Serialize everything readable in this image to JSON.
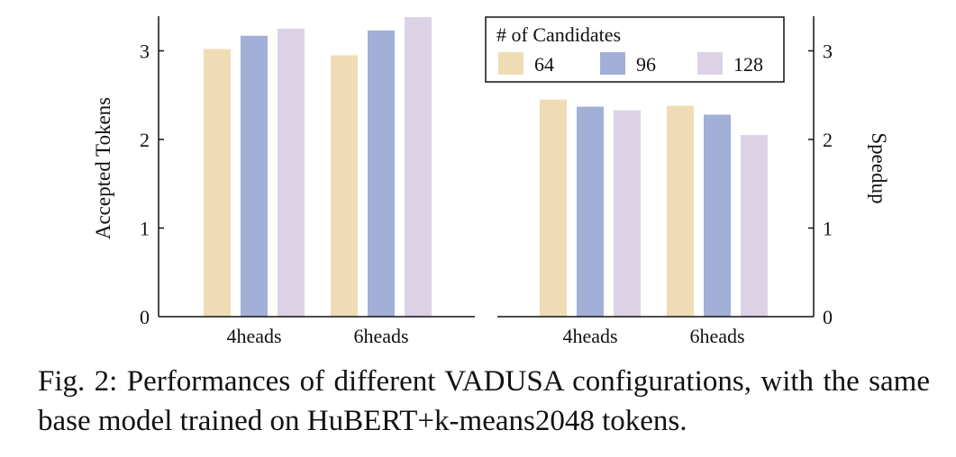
{
  "chart_data": [
    {
      "type": "bar",
      "categories": [
        "4heads",
        "6heads"
      ],
      "series": [
        {
          "name": "64",
          "color": "#f0dcb4",
          "values": [
            3.02,
            2.95
          ]
        },
        {
          "name": "96",
          "color": "#a2afd6",
          "values": [
            3.17,
            3.23
          ]
        },
        {
          "name": "128",
          "color": "#dcd2e6",
          "values": [
            3.25,
            3.38
          ]
        }
      ],
      "ylabel": "Accepted Tokens",
      "yticks": [
        0,
        1,
        2,
        3
      ],
      "ylim": [
        0,
        3.4
      ],
      "y_axis_side": "left",
      "grid": false
    },
    {
      "type": "bar",
      "categories": [
        "4heads",
        "6heads"
      ],
      "series": [
        {
          "name": "64",
          "color": "#f0dcb4",
          "values": [
            2.45,
            2.38
          ]
        },
        {
          "name": "96",
          "color": "#a2afd6",
          "values": [
            2.37,
            2.28
          ]
        },
        {
          "name": "128",
          "color": "#dcd2e6",
          "values": [
            2.33,
            2.05
          ]
        }
      ],
      "ylabel": "Speedup",
      "yticks": [
        0,
        1,
        2,
        3
      ],
      "ylim": [
        0,
        3.4
      ],
      "y_axis_side": "right",
      "grid": false
    }
  ],
  "legend": {
    "title": "# of Candidates",
    "placement": "top-right",
    "entries": [
      "64",
      "96",
      "128"
    ]
  },
  "caption": {
    "label": "Fig. 2:",
    "text": "Performances of different VADUSA configurations, with the same base model trained on HuBERT+k-means2048 tokens."
  }
}
